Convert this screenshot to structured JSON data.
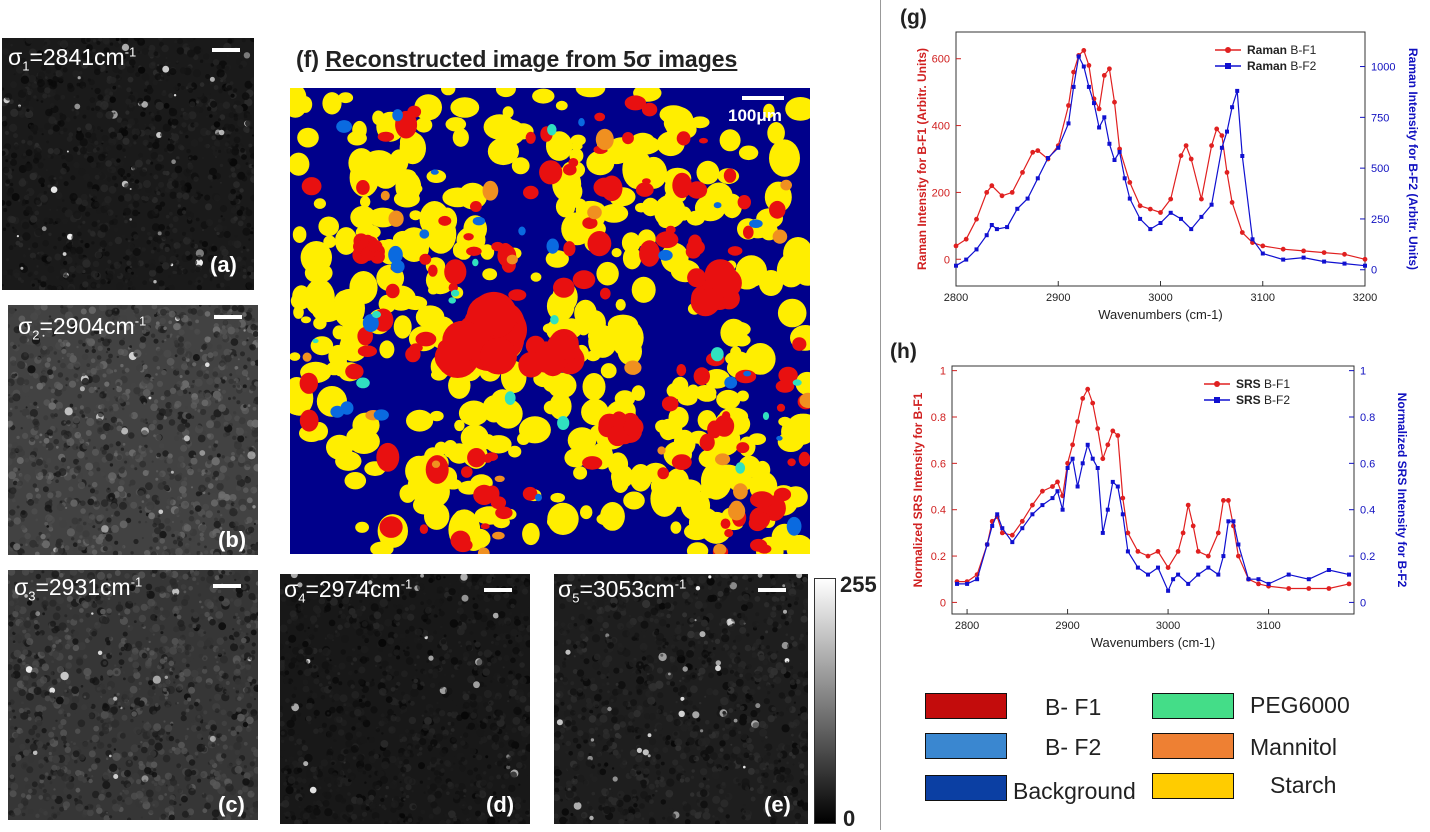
{
  "micro_panels": [
    {
      "id": "a",
      "sigma": "σ",
      "sub": "1",
      "value": "=2841cm",
      "sup": "-1",
      "label": "(a)",
      "brightness": 0.22,
      "speckle": 0.55
    },
    {
      "id": "b",
      "sigma": "σ",
      "sub": "2",
      "value": "=2904cm",
      "sup": "-1",
      "label": "(b)",
      "brightness": 0.55,
      "speckle": 0.2
    },
    {
      "id": "c",
      "sigma": "σ",
      "sub": "3",
      "value": "=2931cm",
      "sup": "-1",
      "label": "(c)",
      "brightness": 0.45,
      "speckle": 0.2
    },
    {
      "id": "d",
      "sigma": "σ",
      "sub": "4",
      "value": "=2974cm",
      "sup": "-1",
      "label": "(d)",
      "brightness": 0.2,
      "speckle": 0.25
    },
    {
      "id": "e",
      "sigma": "σ",
      "sub": "5",
      "value": "=3053cm",
      "sup": "-1",
      "label": "(e)",
      "brightness": 0.25,
      "speckle": 0.6
    }
  ],
  "colorbar": {
    "max": "255",
    "min": "0"
  },
  "reconstructed": {
    "label": "(f)",
    "title": "Reconstructed image from 5σ images",
    "scalebar": "100μm",
    "colors": {
      "background": "#00008b",
      "starch": "#ffee00",
      "bf1": "#e81010",
      "bf2": "#0a6ae0",
      "peg": "#30e0c0",
      "mannitol": "#f09020"
    }
  },
  "raman_chart": {
    "label": "(g)",
    "chart_data": {
      "type": "line",
      "xlabel": "Wavenumbers (cm-1)",
      "ylabel_left": "Raman Intensity for B-F1 (Arbitr. Units)",
      "ylabel_right": "Raman  Intensity  for B-F2 (Arbitr. Units)",
      "xlim": [
        2800,
        3200
      ],
      "ylim_left": [
        -80,
        680
      ],
      "ylim_right": [
        -80,
        1170
      ],
      "xticks": [
        "2800",
        "2900",
        "3000",
        "3100",
        "3200"
      ],
      "yticks_left": [
        "0",
        "200",
        "400",
        "600"
      ],
      "yticks_right": [
        "0",
        "250",
        "500",
        "750",
        "1000"
      ],
      "legend": [
        {
          "bold": "Raman",
          "rest": " B-F1"
        },
        {
          "bold": "Raman",
          "rest": " B-F2"
        }
      ],
      "series": [
        {
          "color": "#e02020",
          "axis": "left",
          "x": [
            2800,
            2810,
            2820,
            2830,
            2835,
            2845,
            2855,
            2865,
            2875,
            2880,
            2890,
            2900,
            2910,
            2915,
            2920,
            2925,
            2930,
            2935,
            2940,
            2945,
            2950,
            2955,
            2960,
            2970,
            2980,
            2990,
            3000,
            3010,
            3020,
            3025,
            3030,
            3040,
            3050,
            3055,
            3060,
            3065,
            3070,
            3080,
            3090,
            3100,
            3120,
            3140,
            3160,
            3180,
            3200
          ],
          "y": [
            40,
            60,
            120,
            200,
            220,
            190,
            200,
            260,
            320,
            325,
            300,
            340,
            460,
            560,
            610,
            625,
            580,
            480,
            450,
            550,
            570,
            470,
            330,
            230,
            160,
            150,
            140,
            180,
            310,
            340,
            300,
            180,
            340,
            390,
            370,
            260,
            170,
            80,
            50,
            40,
            30,
            25,
            20,
            15,
            0
          ]
        },
        {
          "color": "#1010d0",
          "axis": "right",
          "x": [
            2800,
            2810,
            2820,
            2830,
            2835,
            2840,
            2850,
            2860,
            2870,
            2880,
            2890,
            2900,
            2910,
            2915,
            2920,
            2925,
            2930,
            2935,
            2940,
            2945,
            2950,
            2955,
            2960,
            2965,
            2970,
            2980,
            2990,
            3000,
            3010,
            3020,
            3030,
            3040,
            3050,
            3060,
            3065,
            3070,
            3075,
            3080,
            3090,
            3100,
            3120,
            3140,
            3160,
            3180,
            3200
          ],
          "y": [
            20,
            50,
            100,
            170,
            220,
            200,
            210,
            300,
            350,
            450,
            550,
            600,
            720,
            900,
            1050,
            1000,
            900,
            820,
            700,
            750,
            620,
            540,
            580,
            450,
            350,
            250,
            200,
            230,
            280,
            250,
            200,
            260,
            320,
            600,
            680,
            800,
            880,
            560,
            150,
            80,
            50,
            60,
            40,
            30,
            20
          ]
        }
      ]
    }
  },
  "srs_chart": {
    "label": "(h)",
    "chart_data": {
      "type": "line",
      "xlabel": "Wavenumbers (cm-1)",
      "ylabel_left": "Normalized SRS Intensity for B-F1",
      "ylabel_right": "Normalized SRS Intensity for B-F2",
      "xlim": [
        2785,
        3185
      ],
      "ylim_left": [
        -0.05,
        1.02
      ],
      "ylim_right": [
        -0.05,
        1.02
      ],
      "xticks": [
        "2800",
        "2900",
        "3000",
        "3100"
      ],
      "yticks_left": [
        "0",
        "0.2",
        "0.4",
        "0.6",
        "0.8",
        "1"
      ],
      "yticks_right": [
        "0",
        "0.2",
        "0.4",
        "0.6",
        "0.8",
        "1"
      ],
      "legend": [
        {
          "bold": "SRS",
          "rest": " B-F1"
        },
        {
          "bold": "SRS",
          "rest": " B-F2"
        }
      ],
      "series": [
        {
          "color": "#e02020",
          "axis": "left",
          "x": [
            2790,
            2800,
            2810,
            2820,
            2825,
            2830,
            2835,
            2845,
            2855,
            2865,
            2875,
            2885,
            2890,
            2895,
            2900,
            2905,
            2910,
            2915,
            2920,
            2925,
            2930,
            2935,
            2940,
            2945,
            2950,
            2955,
            2960,
            2970,
            2980,
            2990,
            3000,
            3010,
            3015,
            3020,
            3025,
            3030,
            3040,
            3050,
            3055,
            3060,
            3065,
            3070,
            3080,
            3090,
            3100,
            3120,
            3140,
            3160,
            3180
          ],
          "y": [
            0.09,
            0.09,
            0.12,
            0.25,
            0.35,
            0.37,
            0.3,
            0.29,
            0.35,
            0.42,
            0.48,
            0.5,
            0.52,
            0.46,
            0.6,
            0.68,
            0.78,
            0.88,
            0.92,
            0.86,
            0.75,
            0.62,
            0.68,
            0.74,
            0.72,
            0.45,
            0.3,
            0.22,
            0.2,
            0.22,
            0.15,
            0.22,
            0.3,
            0.42,
            0.33,
            0.22,
            0.2,
            0.3,
            0.44,
            0.44,
            0.33,
            0.2,
            0.1,
            0.08,
            0.07,
            0.06,
            0.06,
            0.06,
            0.08
          ]
        },
        {
          "color": "#1010d0",
          "axis": "right",
          "x": [
            2790,
            2800,
            2810,
            2820,
            2825,
            2830,
            2835,
            2845,
            2855,
            2865,
            2875,
            2885,
            2890,
            2895,
            2900,
            2905,
            2910,
            2915,
            2920,
            2925,
            2930,
            2935,
            2940,
            2945,
            2950,
            2955,
            2960,
            2970,
            2980,
            2990,
            3000,
            3005,
            3010,
            3020,
            3030,
            3040,
            3050,
            3055,
            3060,
            3065,
            3070,
            3080,
            3090,
            3100,
            3120,
            3140,
            3160,
            3180
          ],
          "y": [
            0.08,
            0.08,
            0.1,
            0.25,
            0.33,
            0.38,
            0.32,
            0.26,
            0.32,
            0.38,
            0.42,
            0.45,
            0.48,
            0.4,
            0.58,
            0.62,
            0.5,
            0.6,
            0.68,
            0.62,
            0.58,
            0.3,
            0.4,
            0.52,
            0.5,
            0.38,
            0.22,
            0.15,
            0.12,
            0.15,
            0.05,
            0.1,
            0.12,
            0.08,
            0.12,
            0.15,
            0.12,
            0.2,
            0.35,
            0.35,
            0.25,
            0.1,
            0.1,
            0.08,
            0.12,
            0.1,
            0.14,
            0.12
          ]
        }
      ]
    }
  },
  "legend": [
    {
      "label": "B- F1",
      "color": "#c30c0c"
    },
    {
      "label": "PEG6000",
      "color": "#44dd88"
    },
    {
      "label": "B- F2",
      "color": "#3a87d0"
    },
    {
      "label": "Mannitol",
      "color": "#ee8033"
    },
    {
      "label": "Background",
      "color": "#0b3fa3"
    },
    {
      "label": "Starch",
      "color": "#ffcc00"
    }
  ]
}
